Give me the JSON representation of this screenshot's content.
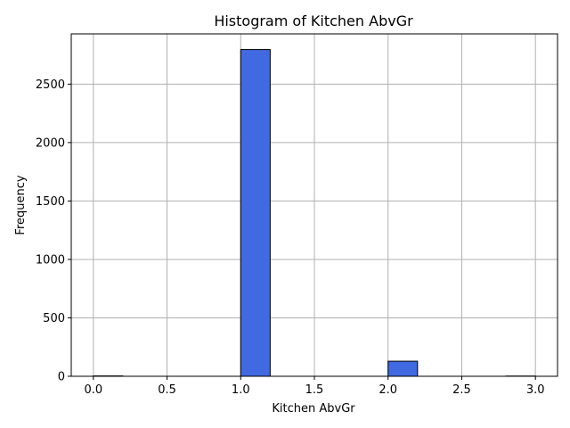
{
  "chart_data": {
    "type": "bar",
    "title": "Histogram of Kitchen AbvGr",
    "xlabel": "Kitchen AbvGr",
    "ylabel": "Frequency",
    "xlim": [
      -0.15,
      3.15
    ],
    "ylim": [
      0,
      2930
    ],
    "grid": true,
    "bar_color": "#4169e1",
    "edge_color": "#000000",
    "bins": [
      {
        "x0": 0.0,
        "x1": 0.2,
        "count": 3
      },
      {
        "x0": 1.0,
        "x1": 1.2,
        "count": 2796
      },
      {
        "x0": 2.0,
        "x1": 2.2,
        "count": 129
      },
      {
        "x0": 2.8,
        "x1": 3.0,
        "count": 2
      }
    ],
    "x_ticks": [
      0.0,
      0.5,
      1.0,
      1.5,
      2.0,
      2.5,
      3.0
    ],
    "x_tick_labels": [
      "0.0",
      "0.5",
      "1.0",
      "1.5",
      "2.0",
      "2.5",
      "3.0"
    ],
    "y_ticks": [
      0,
      500,
      1000,
      1500,
      2000,
      2500
    ],
    "y_tick_labels": [
      "0",
      "500",
      "1000",
      "1500",
      "2000",
      "2500"
    ]
  }
}
